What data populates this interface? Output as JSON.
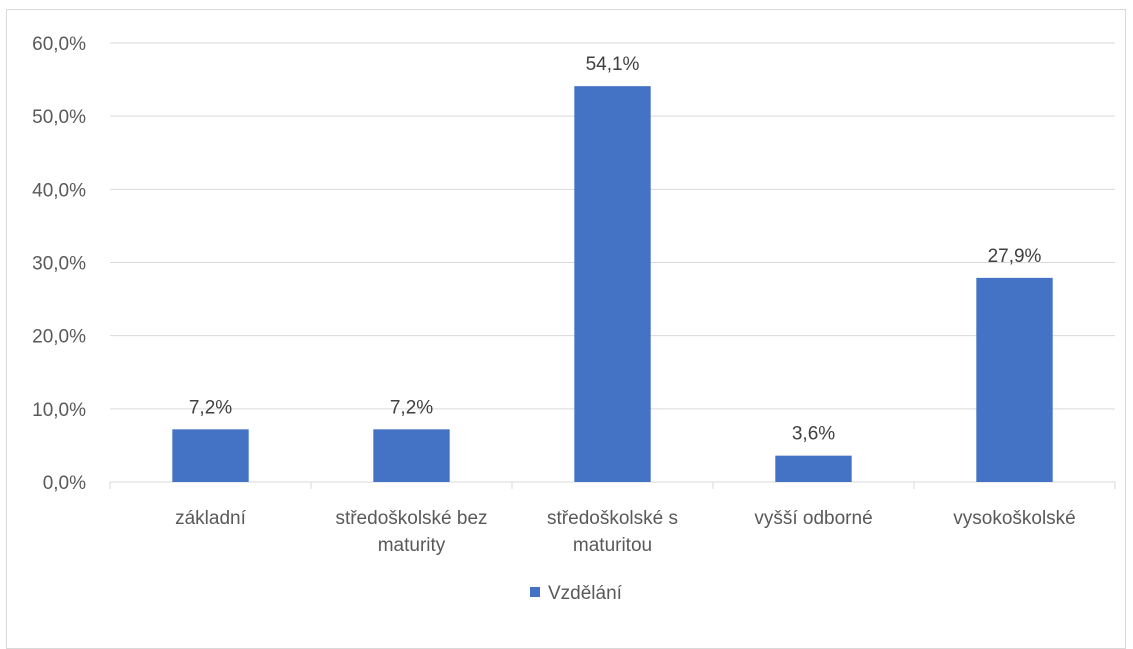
{
  "chart_data": {
    "type": "bar",
    "categories": [
      [
        "základní"
      ],
      [
        "středoškolské bez",
        "maturity"
      ],
      [
        "středoškolské s",
        "maturitou"
      ],
      [
        "vyšší odborné"
      ],
      [
        "vysokoškolské"
      ]
    ],
    "series": [
      {
        "name": "Vzdělání",
        "values": [
          7.2,
          7.2,
          54.1,
          3.6,
          27.9
        ],
        "labels": [
          "7,2%",
          "7,2%",
          "54,1%",
          "3,6%",
          "27,9%"
        ],
        "color": "#4472c4"
      }
    ],
    "yticks": [
      "0,0%",
      "10,0%",
      "20,0%",
      "30,0%",
      "40,0%",
      "50,0%",
      "60,0%"
    ],
    "ylim": [
      0,
      60
    ],
    "grid": true,
    "legend_position": "bottom",
    "gridline_color": "#d9d9d9",
    "axis_color": "#d9d9d9"
  }
}
